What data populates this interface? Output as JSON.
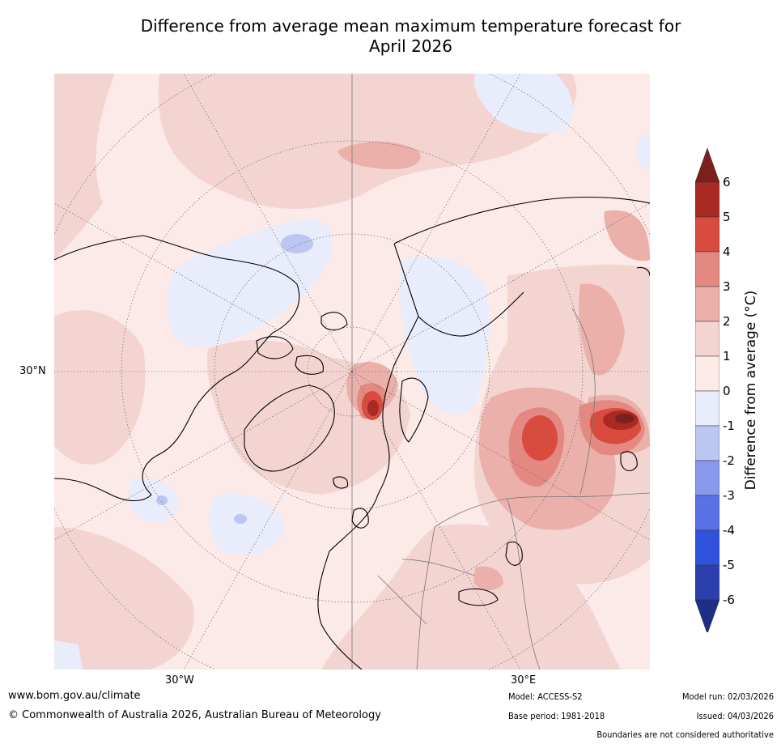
{
  "header": {
    "title_line1": "Difference from average mean maximum temperature forecast for",
    "title_line2": "April 2026"
  },
  "map": {
    "lat_label": "30°N",
    "lon_labels": {
      "west": "30°W",
      "east": "30°E"
    },
    "projection": "north-polar-stereographic"
  },
  "colorbar": {
    "label": "Difference from average (°C)",
    "ticks": [
      "6",
      "5",
      "4",
      "3",
      "2",
      "1",
      "0",
      "-1",
      "-2",
      "-3",
      "-4",
      "-5",
      "-6"
    ],
    "bins": [
      {
        "range": "> 6",
        "color": "#7b1f1f"
      },
      {
        "range": "5 to 6",
        "color": "#aa2a23"
      },
      {
        "range": "4 to 5",
        "color": "#d84b3e"
      },
      {
        "range": "3 to 4",
        "color": "#e48981"
      },
      {
        "range": "2 to 3",
        "color": "#ecb0aa"
      },
      {
        "range": "1 to 2",
        "color": "#f4d4d0"
      },
      {
        "range": "0 to 1",
        "color": "#fbeae8"
      },
      {
        "range": "-1 to 0",
        "color": "#e8ecfb"
      },
      {
        "range": "-2 to -1",
        "color": "#bcc6f2"
      },
      {
        "range": "-3 to -2",
        "color": "#8898ec"
      },
      {
        "range": "-4 to -3",
        "color": "#5a70e4"
      },
      {
        "range": "-5 to -4",
        "color": "#2f52dc"
      },
      {
        "range": "-6 to -5",
        "color": "#2c3fad"
      },
      {
        "range": "< -6",
        "color": "#1e2d86"
      }
    ]
  },
  "footer": {
    "website": "www.bom.gov.au/climate",
    "copyright": "© Commonwealth of Australia 2026, Australian Bureau of Meteorology",
    "model": "Model: ACCESS-S2",
    "base_period": "Base period: 1981-2018",
    "model_run": "Model run: 02/03/2026",
    "issued": "Issued: 04/03/2026",
    "disclaimer": "Boundaries are not considered authoritative"
  }
}
